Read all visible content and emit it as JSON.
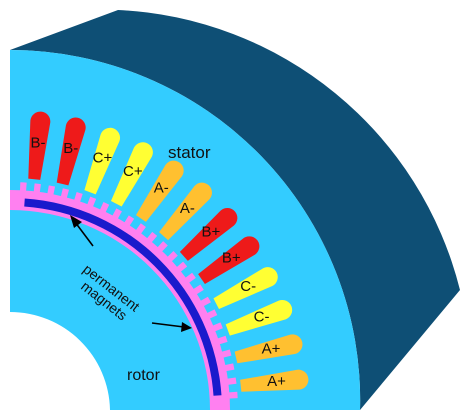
{
  "labels": {
    "stator": "stator",
    "rotor": "rotor",
    "magnets_line1": "permanent",
    "magnets_line2": "magnets"
  },
  "colors": {
    "stator_face": "#33ccff",
    "stator_side": "#0d4a6e",
    "stator_top": "#0e4f75",
    "magnet_carrier": "#ff80f0",
    "magnet": "#1a1acc",
    "phase_A": "#ffc030",
    "phase_B": "#ee1a1a",
    "phase_C": "#ffff33",
    "arrow": "#000000"
  },
  "slots": [
    {
      "label": "B-",
      "phase": "B"
    },
    {
      "label": "B-",
      "phase": "B"
    },
    {
      "label": "C+",
      "phase": "C"
    },
    {
      "label": "C+",
      "phase": "C"
    },
    {
      "label": "A-",
      "phase": "A"
    },
    {
      "label": "A-",
      "phase": "A"
    },
    {
      "label": "B+",
      "phase": "B"
    },
    {
      "label": "B+",
      "phase": "B"
    },
    {
      "label": "C-",
      "phase": "C"
    },
    {
      "label": "C-",
      "phase": "C"
    },
    {
      "label": "A+",
      "phase": "A"
    },
    {
      "label": "A+",
      "phase": "A"
    }
  ]
}
